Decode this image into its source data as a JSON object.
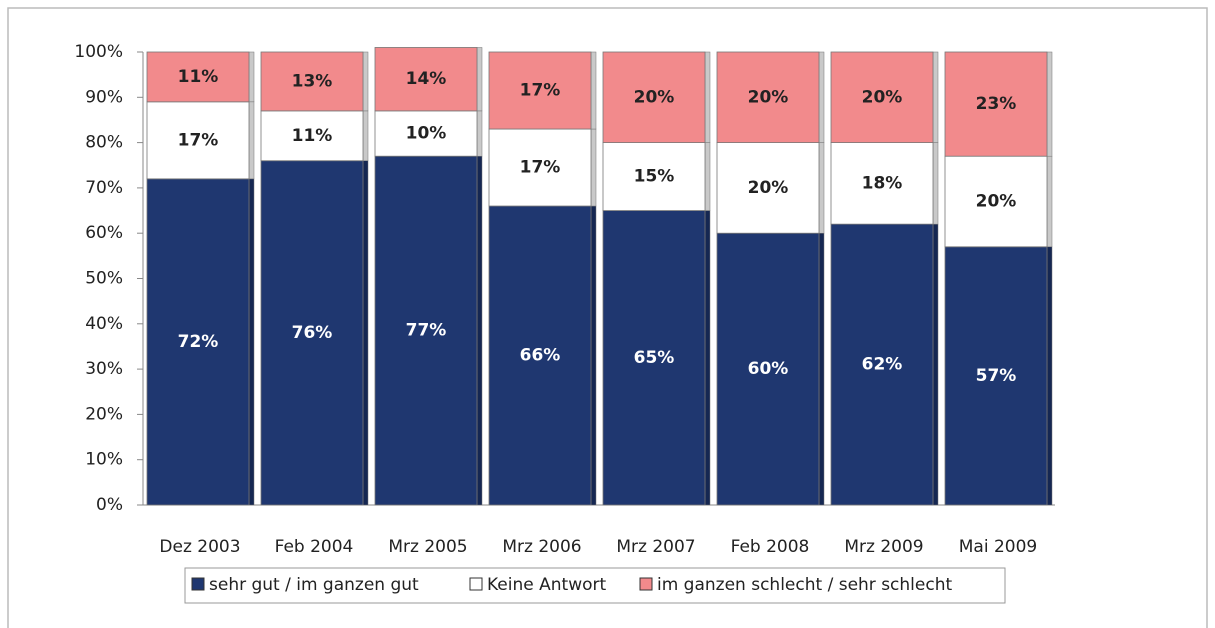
{
  "chart_data": {
    "type": "stacked_bar",
    "categories": [
      "Dez 2003",
      "Feb 2004",
      "Mrz 2005",
      "Mrz 2006",
      "Mrz 2007",
      "Feb 2008",
      "Mrz 2009",
      "Mai 2009"
    ],
    "series": [
      {
        "name": "sehr gut / im ganzen gut",
        "color": "#1f3770",
        "label_color": "#ffffff",
        "values": [
          72,
          76,
          77,
          66,
          65,
          60,
          62,
          57
        ],
        "value_labels": [
          "72%",
          "76%",
          "77%",
          "66%",
          "65%",
          "60%",
          "62%",
          "57%"
        ]
      },
      {
        "name": "Keine Antwort",
        "color": "#ffffff",
        "label_color": "#222222",
        "values": [
          17,
          11,
          10,
          17,
          15,
          20,
          18,
          20
        ],
        "value_labels": [
          "17%",
          "11%",
          "10%",
          "17%",
          "15%",
          "20%",
          "18%",
          "20%"
        ]
      },
      {
        "name": "im ganzen schlecht / sehr schlecht",
        "color": "#f28a8c",
        "label_color": "#222222",
        "values": [
          11,
          13,
          14,
          17,
          20,
          20,
          20,
          23
        ],
        "value_labels": [
          "11%",
          "13%",
          "14%",
          "17%",
          "20%",
          "20%",
          "20%",
          "23%"
        ]
      }
    ],
    "ylim": [
      0,
      100
    ],
    "yticks": [
      {
        "value": 0,
        "label": "0%"
      },
      {
        "value": 10,
        "label": "10%"
      },
      {
        "value": 20,
        "label": "20%"
      },
      {
        "value": 30,
        "label": "30%"
      },
      {
        "value": 40,
        "label": "40%"
      },
      {
        "value": 50,
        "label": "50%"
      },
      {
        "value": 60,
        "label": "60%"
      },
      {
        "value": 70,
        "label": "70%"
      },
      {
        "value": 80,
        "label": "80%"
      },
      {
        "value": 90,
        "label": "90%"
      },
      {
        "value": 100,
        "label": "100%"
      }
    ],
    "legend": "bottom"
  }
}
